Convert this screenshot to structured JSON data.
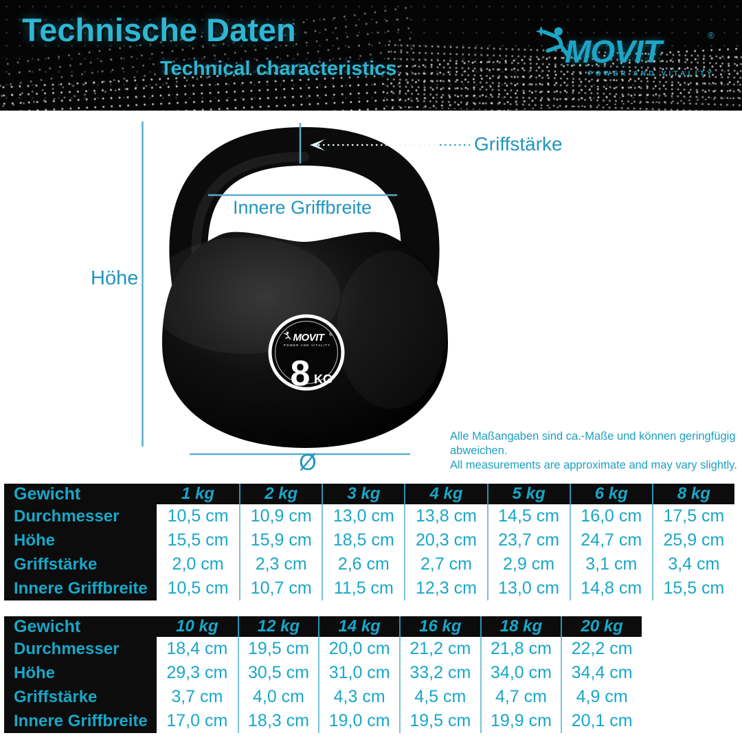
{
  "header": {
    "title": "Technische Daten",
    "subtitle": "Technical characteristics",
    "logo": {
      "brand": "MOVIT",
      "registered": "®",
      "tagline": "POWER AND VITALITY"
    }
  },
  "diagram": {
    "labels": {
      "grip_thickness": "Griffstärke",
      "inner_grip_width": "Innere Griffbreite",
      "height": "Höhe",
      "diameter": "Ø"
    },
    "badge": {
      "brand": "MOVIT",
      "registered": "®",
      "tagline": "POWER AND VITALITY",
      "weight_value": "8",
      "weight_unit": "KG"
    },
    "note_de": "Alle Maßangaben sind ca.-Maße und können geringfügig abweichen.",
    "note_en": "All measurements are approximate and may vary slightly."
  },
  "tables": [
    {
      "weight_label": "Gewicht",
      "weights": [
        "1 kg",
        "2 kg",
        "3 kg",
        "4 kg",
        "5 kg",
        "6 kg",
        "8 kg"
      ],
      "rows": [
        {
          "label": "Durchmesser",
          "values": [
            "10,5 cm",
            "10,9 cm",
            "13,0 cm",
            "13,8 cm",
            "14,5 cm",
            "16,0 cm",
            "17,5 cm"
          ]
        },
        {
          "label": "Höhe",
          "values": [
            "15,5 cm",
            "15,9 cm",
            "18,5 cm",
            "20,3 cm",
            "23,7 cm",
            "24,7 cm",
            "25,9 cm"
          ]
        },
        {
          "label": "Griffstärke",
          "values": [
            "2,0 cm",
            "2,3 cm",
            "2,6 cm",
            "2,7 cm",
            "2,9 cm",
            "3,1 cm",
            "3,4 cm"
          ]
        },
        {
          "label": "Innere Griffbreite",
          "values": [
            "10,5 cm",
            "10,7 cm",
            "11,5 cm",
            "12,3 cm",
            "13,0 cm",
            "14,8 cm",
            "15,5 cm"
          ]
        }
      ]
    },
    {
      "weight_label": "Gewicht",
      "weights": [
        "10 kg",
        "12 kg",
        "14 kg",
        "16 kg",
        "18 kg",
        "20 kg"
      ],
      "rows": [
        {
          "label": "Durchmesser",
          "values": [
            "18,4 cm",
            "19,5 cm",
            "20,0 cm",
            "21,2 cm",
            "21,8 cm",
            "22,2 cm"
          ]
        },
        {
          "label": "Höhe",
          "values": [
            "29,3 cm",
            "30,5 cm",
            "31,0 cm",
            "33,2 cm",
            "34,0 cm",
            "34,4 cm"
          ]
        },
        {
          "label": "Griffstärke",
          "values": [
            "3,7 cm",
            "4,0 cm",
            "4,3 cm",
            "4,5 cm",
            "4,7 cm",
            "4,9 cm"
          ]
        },
        {
          "label": "Innere Griffbreite",
          "values": [
            "17,0 cm",
            "18,3 cm",
            "19,0 cm",
            "19,5 cm",
            "19,9 cm",
            "20,1 cm"
          ]
        }
      ]
    }
  ],
  "colors": {
    "accent": "#18a7c8",
    "title": "#2eb6d2",
    "diagram_label": "#2196bc",
    "dimension_line": "#5aadca",
    "black": "#0c0c0c"
  }
}
